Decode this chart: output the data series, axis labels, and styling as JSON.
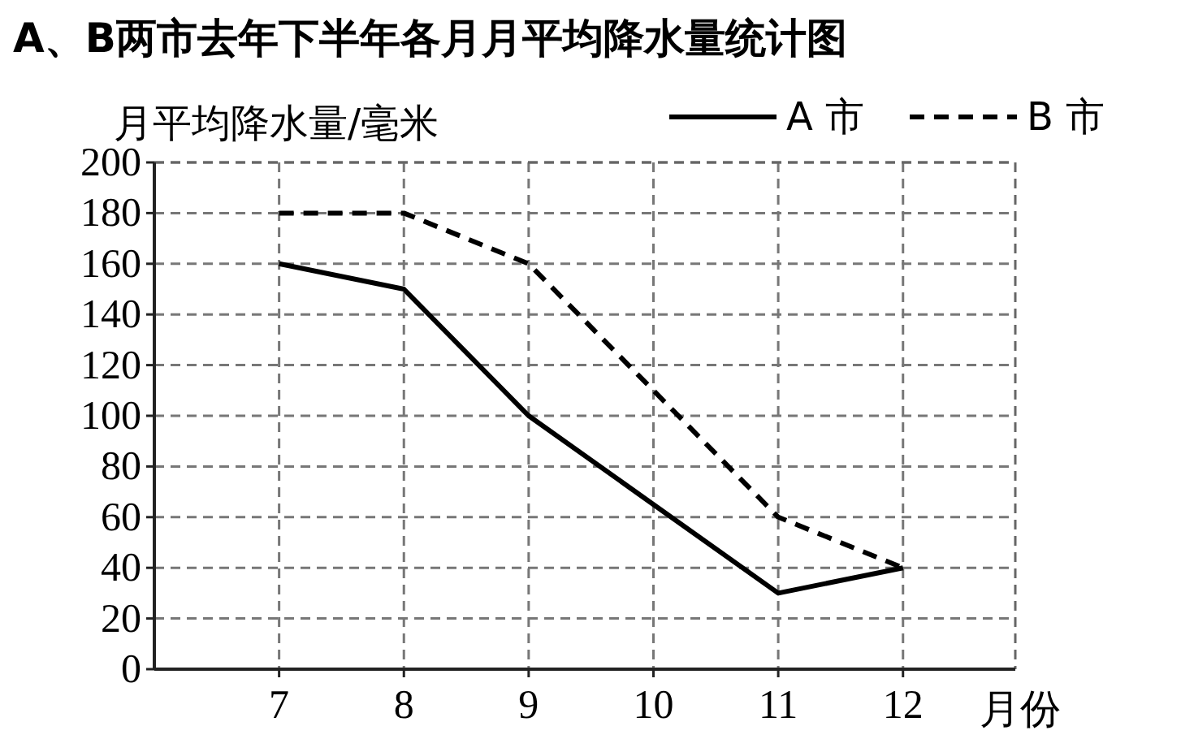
{
  "chart_data": {
    "type": "line",
    "title": "A、B两市去年下半年各月月平均降水量统计图",
    "ylabel": "月平均降水量/毫米",
    "xlabel": "月份",
    "x": [
      7,
      8,
      9,
      10,
      11,
      12
    ],
    "xlim": [
      6,
      12.9
    ],
    "xticks": [
      7,
      8,
      9,
      10,
      11,
      12
    ],
    "ylim": [
      0,
      200
    ],
    "yticks": [
      0,
      20,
      40,
      60,
      80,
      100,
      120,
      140,
      160,
      180,
      200
    ],
    "grid": true,
    "legend": "top right",
    "series": [
      {
        "name": "A 市",
        "color": "#000000",
        "line_style": "solid",
        "values": [
          160,
          150,
          100,
          65,
          30,
          40
        ]
      },
      {
        "name": "B 市",
        "color": "#000000",
        "line_style": "dashed",
        "values": [
          180,
          180,
          160,
          110,
          60,
          40
        ]
      }
    ]
  }
}
